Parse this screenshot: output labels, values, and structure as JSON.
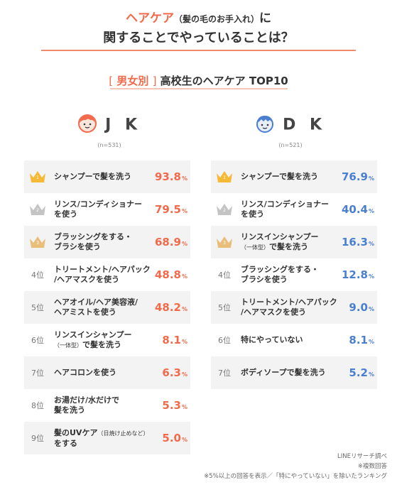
{
  "title": {
    "line1_highlight": "ヘアケア",
    "line1_paren": "（髪の毛のお手入れ）",
    "line1_end": "に",
    "line2": "関することでやっていることは？"
  },
  "subtitle": {
    "bracket_open": "[",
    "tag": "男女別",
    "bracket_close": "]",
    "text": "高校生のヘアケア TOP10"
  },
  "colors": {
    "jk": "#f26a4b",
    "dk": "#4a7fd0",
    "gold": "#f5b935",
    "silver": "#c4c4c4",
    "bronze": "#e8be7a"
  },
  "groups": {
    "jk": {
      "name": "J K",
      "n": "(n=531)",
      "icon": "girl-face-icon"
    },
    "dk": {
      "name": "D K",
      "n": "(n=521)",
      "icon": "boy-face-icon"
    }
  },
  "chart_data": [
    {
      "type": "table",
      "name": "J K",
      "ranks": [
        "1",
        "2",
        "3",
        "4位",
        "5位",
        "6位",
        "7位",
        "8位",
        "9位"
      ],
      "items": [
        [
          "シャンプーで髪を洗う"
        ],
        [
          "リンス/コンディショナー",
          "を使う"
        ],
        [
          "ブラッシングをする・",
          "ブラシを使う"
        ],
        [
          "トリートメント/ヘアパック",
          "/ヘアマスクを使う"
        ],
        [
          "ヘアオイル/ヘア美容液/",
          "ヘアミストを使う"
        ],
        [
          "リンスインシャンプー",
          "（一体型）で髪を洗う"
        ],
        [
          "ヘアコロンを使う"
        ],
        [
          "お湯だけ/水だけで",
          "髪を洗う"
        ],
        [
          "髪のUVケア（日焼け止めなど）",
          "をする"
        ]
      ],
      "values": [
        93.8,
        79.5,
        68.9,
        48.8,
        48.2,
        8.1,
        6.3,
        5.3,
        5.0
      ],
      "value_labels": [
        "93.8",
        "79.5",
        "68.9",
        "48.8",
        "48.2",
        "8.1",
        "6.3",
        "5.3",
        "5.0"
      ],
      "unit": "%"
    },
    {
      "type": "table",
      "name": "D K",
      "ranks": [
        "1",
        "2",
        "3",
        "4位",
        "5位",
        "6位",
        "7位"
      ],
      "items": [
        [
          "シャンプーで髪を洗う"
        ],
        [
          "リンス/コンディショナー",
          "を使う"
        ],
        [
          "リンスインシャンプー",
          "（一体型）で髪を洗う"
        ],
        [
          "ブラッシングをする・",
          "ブラシを使う"
        ],
        [
          "トリートメント/ヘアパック",
          "/ヘアマスクを使う"
        ],
        [
          "特にやっていない"
        ],
        [
          "ボディソープで髪を洗う"
        ]
      ],
      "values": [
        76.9,
        40.4,
        16.3,
        12.8,
        9.0,
        8.1,
        5.2
      ],
      "value_labels": [
        "76.9",
        "40.4",
        "16.3",
        "12.8",
        "9.0",
        "8.1",
        "5.2"
      ],
      "unit": "%"
    }
  ],
  "notes": [
    "LINEリサーチ調べ",
    "※複数回答",
    "※5%以上の回答を表示／「特にやっていない」を除いたランキング"
  ]
}
